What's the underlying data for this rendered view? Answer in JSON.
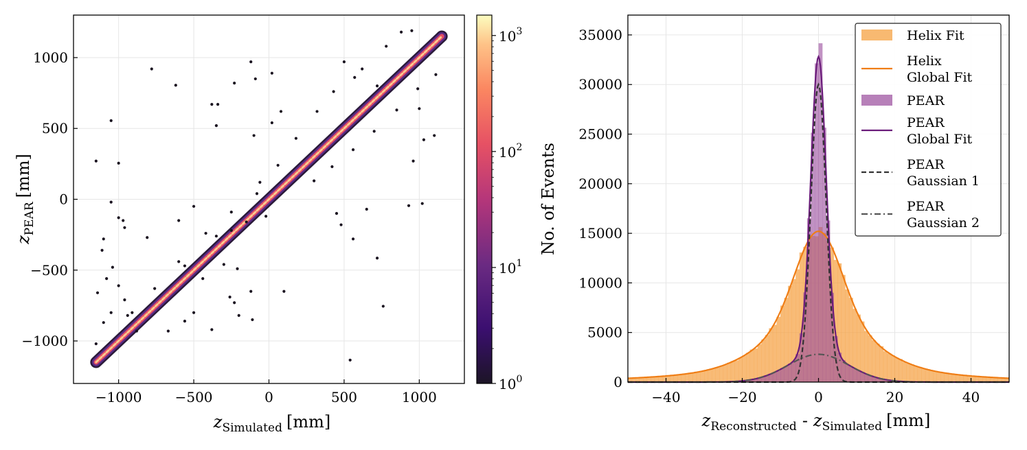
{
  "chart_data": [
    {
      "type": "heatmap",
      "subtype": "hexbin-2d-histogram",
      "xlabel_base": "z",
      "xlabel_sub": "Simulated",
      "xlabel_unit": "[mm]",
      "ylabel_base": "z",
      "ylabel_sub": "PEAR",
      "ylabel_unit": "[mm]",
      "xlim": [
        -1300,
        1300
      ],
      "ylim": [
        -1300,
        1300
      ],
      "xticks": [
        -1000,
        -500,
        0,
        500,
        1000
      ],
      "xtick_labels": [
        "−1000",
        "−500",
        "0",
        "500",
        "1000"
      ],
      "yticks": [
        -1000,
        -500,
        0,
        500,
        1000
      ],
      "ytick_labels": [
        "−1000",
        "−500",
        "0",
        "500",
        "1000"
      ],
      "grid": true,
      "colormap": "magma",
      "colorbar": {
        "scale": "log",
        "range": [
          1,
          1500
        ],
        "ticks": [
          1,
          10,
          100,
          1000
        ],
        "tick_base": "10",
        "tick_exponents": [
          "0",
          "1",
          "2",
          "3"
        ]
      },
      "diagonal_range": [
        -1150,
        1150
      ],
      "outliers": [
        [
          -1150,
          270
        ],
        [
          -1050,
          555
        ],
        [
          -1000,
          255
        ],
        [
          -780,
          920
        ],
        [
          -620,
          805
        ],
        [
          -380,
          670
        ],
        [
          -340,
          670
        ],
        [
          -350,
          520
        ],
        [
          -230,
          820
        ],
        [
          -120,
          970
        ],
        [
          -90,
          850
        ],
        [
          20,
          890
        ],
        [
          -100,
          450
        ],
        [
          20,
          540
        ],
        [
          80,
          620
        ],
        [
          500,
          970
        ],
        [
          570,
          860
        ],
        [
          720,
          800
        ],
        [
          1100,
          450
        ],
        [
          1030,
          420
        ],
        [
          960,
          270
        ],
        [
          1020,
          -30
        ],
        [
          930,
          -45
        ],
        [
          650,
          -70
        ],
        [
          450,
          -100
        ],
        [
          480,
          -180
        ],
        [
          560,
          -280
        ],
        [
          720,
          -415
        ],
        [
          760,
          -755
        ],
        [
          540,
          -1135
        ],
        [
          -1050,
          -20
        ],
        [
          -1000,
          -130
        ],
        [
          -970,
          -150
        ],
        [
          -960,
          -200
        ],
        [
          -1100,
          -280
        ],
        [
          -1110,
          -360
        ],
        [
          -1140,
          -660
        ],
        [
          -1080,
          -560
        ],
        [
          -1040,
          -480
        ],
        [
          -1000,
          -610
        ],
        [
          -960,
          -710
        ],
        [
          -910,
          -800
        ],
        [
          -880,
          -930
        ],
        [
          -810,
          -270
        ],
        [
          -600,
          -150
        ],
        [
          -500,
          -50
        ],
        [
          -150,
          -160
        ],
        [
          -80,
          40
        ],
        [
          -20,
          -120
        ],
        [
          100,
          -650
        ],
        [
          -120,
          -650
        ],
        [
          -230,
          -730
        ],
        [
          -200,
          -820
        ],
        [
          -110,
          -850
        ],
        [
          -380,
          -920
        ],
        [
          -260,
          -690
        ],
        [
          -560,
          -470
        ],
        [
          -560,
          -860
        ],
        [
          -500,
          -800
        ],
        [
          -1150,
          -1020
        ],
        [
          -1100,
          -870
        ],
        [
          -1050,
          -800
        ],
        [
          -670,
          -930
        ],
        [
          -440,
          -560
        ],
        [
          -300,
          -460
        ],
        [
          -350,
          -260
        ],
        [
          -250,
          -220
        ],
        [
          -210,
          -490
        ],
        [
          -60,
          120
        ],
        [
          60,
          240
        ],
        [
          180,
          430
        ],
        [
          320,
          620
        ],
        [
          430,
          760
        ],
        [
          620,
          920
        ],
        [
          780,
          1080
        ],
        [
          880,
          1180
        ],
        [
          950,
          1190
        ],
        [
          300,
          130
        ],
        [
          420,
          230
        ],
        [
          560,
          350
        ],
        [
          700,
          480
        ],
        [
          850,
          630
        ],
        [
          990,
          780
        ],
        [
          1110,
          880
        ],
        [
          1000,
          640
        ],
        [
          -940,
          -820
        ],
        [
          -760,
          -630
        ],
        [
          -600,
          -440
        ],
        [
          -420,
          -240
        ],
        [
          -250,
          -90
        ]
      ]
    },
    {
      "type": "bar",
      "subtype": "histogram-with-fits",
      "xlabel_base1": "z",
      "xlabel_sub1": "Reconstructed",
      "xlabel_sep": "-",
      "xlabel_base2": "z",
      "xlabel_sub2": "Simulated",
      "xlabel_unit": "[mm]",
      "ylabel": "No. of Events",
      "xlim": [
        -50,
        50
      ],
      "ylim": [
        0,
        37000
      ],
      "xticks": [
        -40,
        -20,
        0,
        20,
        40
      ],
      "xtick_labels": [
        "−40",
        "−20",
        "0",
        "20",
        "40"
      ],
      "yticks": [
        0,
        5000,
        10000,
        15000,
        20000,
        25000,
        30000,
        35000
      ],
      "ytick_labels": [
        "0",
        "5000",
        "10000",
        "15000",
        "20000",
        "25000",
        "30000",
        "35000"
      ],
      "grid": true,
      "bin_width": 1,
      "series": [
        {
          "name": "Helix Fit",
          "kind": "histogram",
          "color": "#f5a142",
          "gaussians": [
            [
              9000,
              0,
              6
            ],
            [
              5000,
              0,
              13
            ],
            [
              1200,
              0,
              33
            ]
          ]
        },
        {
          "name": "Helix\nGlobal Fit",
          "kind": "line",
          "color": "#ef7d15",
          "gaussians": [
            [
              9000,
              0,
              6
            ],
            [
              5000,
              0,
              13
            ],
            [
              1200,
              0,
              33
            ]
          ]
        },
        {
          "name": "PEAR",
          "kind": "histogram",
          "color": "#9b4f9e",
          "gaussians": [
            [
              30000,
              0,
              2.0
            ],
            [
              2800,
              0,
              8
            ]
          ]
        },
        {
          "name": "PEAR\nGlobal Fit",
          "kind": "line",
          "color": "#6a1b7a",
          "gaussians": [
            [
              30000,
              0,
              2.0
            ],
            [
              2800,
              0,
              8
            ]
          ]
        },
        {
          "name": "PEAR\nGaussian 1",
          "kind": "line",
          "dash": "dashed",
          "color": "#333333",
          "gaussians": [
            [
              30000,
              0,
              2.0
            ]
          ]
        },
        {
          "name": "PEAR\nGaussian 2",
          "kind": "line",
          "dash": "dashdot",
          "color": "#555555",
          "gaussians": [
            [
              2800,
              0,
              8
            ]
          ]
        }
      ],
      "legend_position": "top-right"
    }
  ]
}
